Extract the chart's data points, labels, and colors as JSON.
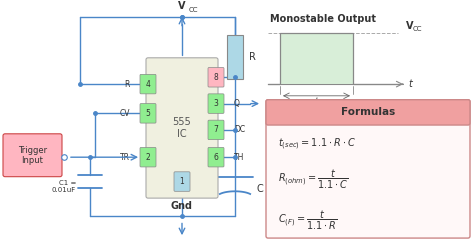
{
  "bg_color": "#ffffff",
  "vcc_label": "VCC",
  "gnd_label": "Gnd",
  "ic_label": "555\nIC",
  "trigger_label": "Trigger\nInput",
  "c1_label": "C1 =\n0.01uF",
  "r_label": "R",
  "c_label": "C",
  "output_title": "Monostable Output",
  "vcc_right": "VCC",
  "t_label": "t",
  "t_axis": "t",
  "formulas_title": "Formulas",
  "formula1": "$t_{(sec)} = 1.1 \\cdot R \\cdot C$",
  "formula2": "$R_{(ohm)} = \\dfrac{t}{1.1 \\cdot C}$",
  "formula3": "$C_{(F)} = \\dfrac{t}{1.1 \\cdot R}$",
  "ic_fill": "#f0f0e0",
  "pin_fill_green": "#90EE90",
  "pin_fill_red": "#FFB6C1",
  "pin_fill_blue": "#ADD8E6",
  "circuit_color": "#4a86c8",
  "formula_header_color": "#f0a0a0",
  "formula_bg_color": "#fff8f8",
  "output_waveform_color": "#c8e8c8",
  "trigger_box_fill": "#FFB6C1",
  "trigger_box_edge": "#cc4444"
}
